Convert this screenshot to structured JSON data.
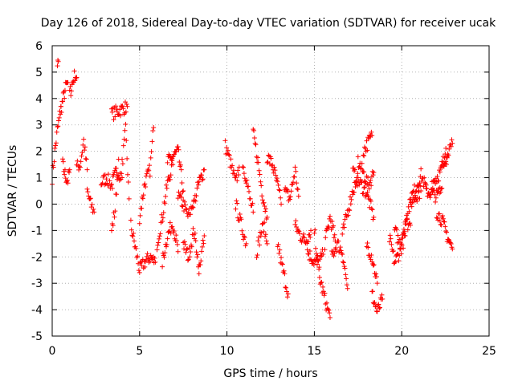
{
  "chart_data": {
    "type": "scatter",
    "title": "Day 126 of 2018, Sidereal Day-to-day VTEC variation (SDTVAR) for receiver ucak",
    "xlabel": "GPS time / hours",
    "ylabel": "SDTVAR / TECUs",
    "xlim": [
      0,
      25
    ],
    "ylim": [
      -5,
      6
    ],
    "xticks": [
      0,
      5,
      10,
      15,
      20,
      25
    ],
    "yticks": [
      -5,
      -4,
      -3,
      -2,
      -1,
      0,
      1,
      2,
      3,
      4,
      5,
      6
    ],
    "grid": true,
    "marker": "+",
    "color": "#ff0000",
    "series": [
      {
        "name": "SDTVAR",
        "segments": [
          {
            "x": [
              0.0,
              0.15,
              0.3,
              0.4,
              0.5
            ],
            "y": [
              1.0,
              2.0,
              2.8,
              3.2,
              3.7
            ]
          },
          {
            "x": [
              0.3,
              0.35
            ],
            "y": [
              5.3,
              5.4
            ]
          },
          {
            "x": [
              0.5,
              0.6,
              0.7,
              0.8,
              0.9
            ],
            "y": [
              3.6,
              3.9,
              4.2,
              4.5,
              4.6
            ]
          },
          {
            "x": [
              0.6,
              0.7,
              0.8,
              0.9,
              1.0
            ],
            "y": [
              1.5,
              1.2,
              1.0,
              0.9,
              1.3
            ]
          },
          {
            "x": [
              1.0,
              1.1,
              1.2,
              1.3,
              1.4
            ],
            "y": [
              4.2,
              4.4,
              4.7,
              4.9,
              4.8
            ]
          },
          {
            "x": [
              1.4,
              1.6,
              1.8,
              2.0
            ],
            "y": [
              1.4,
              1.5,
              2.4,
              1.3
            ]
          },
          {
            "x": [
              2.0,
              2.2,
              2.4
            ],
            "y": [
              0.5,
              0.0,
              -0.3
            ]
          },
          {
            "x": [
              2.8,
              3.1,
              3.4,
              3.7,
              4.0
            ],
            "y": [
              0.8,
              1.0,
              0.7,
              1.3,
              1.0
            ]
          },
          {
            "x": [
              3.4,
              3.6,
              3.8
            ],
            "y": [
              -1.0,
              -0.2,
              1.7
            ]
          },
          {
            "x": [
              3.4,
              4.3
            ],
            "y": [
              3.4,
              3.7
            ]
          },
          {
            "x": [
              4.0,
              4.2,
              4.4
            ],
            "y": [
              1.5,
              2.8,
              0.2
            ]
          },
          {
            "x": [
              4.5,
              4.8,
              5.0,
              5.3,
              5.6,
              5.9
            ],
            "y": [
              -0.8,
              -1.8,
              -2.5,
              -2.2,
              -2.0,
              -2.2
            ]
          },
          {
            "x": [
              5.0,
              5.3,
              5.6,
              5.8
            ],
            "y": [
              -0.5,
              0.8,
              1.3,
              2.9
            ]
          },
          {
            "x": [
              6.0,
              6.3,
              6.6,
              6.9
            ],
            "y": [
              -1.5,
              -0.5,
              0.8,
              1.5
            ]
          },
          {
            "x": [
              6.3,
              6.6,
              6.9,
              7.2
            ],
            "y": [
              -2.2,
              -1.2,
              -0.7,
              -1.8
            ]
          },
          {
            "x": [
              6.6,
              6.9,
              7.2,
              7.5
            ],
            "y": [
              1.6,
              1.8,
              2.0,
              0.5
            ]
          },
          {
            "x": [
              7.2,
              7.5,
              7.8,
              8.1
            ],
            "y": [
              0.3,
              0.0,
              -0.5,
              0.1
            ]
          },
          {
            "x": [
              7.5,
              7.8,
              8.1,
              8.4
            ],
            "y": [
              -1.5,
              -2.0,
              -1.0,
              -2.3
            ]
          },
          {
            "x": [
              8.1,
              8.4,
              8.7
            ],
            "y": [
              0.0,
              0.8,
              1.3
            ]
          },
          {
            "x": [
              8.4,
              8.7
            ],
            "y": [
              -2.5,
              -1.2
            ]
          },
          {
            "x": [
              9.9,
              10.1,
              10.3,
              10.5,
              10.7
            ],
            "y": [
              2.2,
              1.8,
              1.3,
              0.8,
              1.4
            ]
          },
          {
            "x": [
              10.5,
              10.7,
              10.9,
              11.1
            ],
            "y": [
              0.0,
              -0.5,
              -1.0,
              -1.5
            ]
          },
          {
            "x": [
              10.9,
              11.1,
              11.3,
              11.5
            ],
            "y": [
              1.5,
              1.0,
              0.2,
              -0.3
            ]
          },
          {
            "x": [
              11.5,
              11.8,
              12.0,
              12.3
            ],
            "y": [
              2.7,
              1.5,
              0.5,
              -0.5
            ]
          },
          {
            "x": [
              11.7,
              11.9,
              12.1,
              12.3
            ],
            "y": [
              -1.8,
              -1.2,
              -0.8,
              -1.5
            ]
          },
          {
            "x": [
              12.3,
              12.6,
              12.9,
              13.1
            ],
            "y": [
              1.8,
              1.5,
              0.7,
              0.0
            ]
          },
          {
            "x": [
              12.9,
              13.1,
              13.3,
              13.5
            ],
            "y": [
              -1.5,
              -2.2,
              -2.8,
              -3.4
            ]
          },
          {
            "x": [
              13.3,
              13.6,
              13.9,
              14.1
            ],
            "y": [
              0.5,
              0.2,
              1.3,
              0.3
            ]
          },
          {
            "x": [
              13.9,
              14.2,
              14.5,
              14.8
            ],
            "y": [
              -0.8,
              -1.2,
              -1.4,
              -1.0
            ]
          },
          {
            "x": [
              14.6,
              14.9,
              15.2,
              15.5
            ],
            "y": [
              -1.8,
              -2.1,
              -2.3,
              -1.9
            ]
          },
          {
            "x": [
              15.0,
              15.3,
              15.6,
              15.9
            ],
            "y": [
              -1.0,
              -2.8,
              -3.6,
              -4.3
            ]
          },
          {
            "x": [
              15.6,
              15.9,
              16.2
            ],
            "y": [
              -1.5,
              -0.5,
              -1.4
            ]
          },
          {
            "x": [
              16.0,
              16.3,
              16.6,
              16.9
            ],
            "y": [
              -2.0,
              -1.5,
              -1.8,
              -3.2
            ]
          },
          {
            "x": [
              16.6,
              16.9,
              17.2,
              17.5
            ],
            "y": [
              -1.2,
              -0.3,
              0.5,
              1.0
            ]
          },
          {
            "x": [
              17.2,
              17.6,
              18.0,
              18.4
            ],
            "y": [
              1.2,
              0.8,
              0.4,
              -0.5
            ]
          },
          {
            "x": [
              17.5,
              17.8,
              18.1,
              18.4
            ],
            "y": [
              1.6,
              1.2,
              0.7,
              1.2
            ]
          },
          {
            "x": [
              17.8,
              18.3
            ],
            "y": [
              2.0,
              2.6
            ]
          },
          {
            "x": [
              18.0,
              18.3,
              18.6
            ],
            "y": [
              -1.5,
              -2.0,
              -3.0
            ]
          },
          {
            "x": [
              18.3,
              18.6,
              18.9
            ],
            "y": [
              -3.4,
              -4.1,
              -3.6
            ]
          },
          {
            "x": [
              19.3,
              19.6,
              19.9,
              20.2
            ],
            "y": [
              -1.3,
              -2.2,
              -1.8,
              -1.2
            ]
          },
          {
            "x": [
              19.6,
              19.9,
              20.2,
              20.5
            ],
            "y": [
              -1.0,
              -1.5,
              -0.7,
              -0.8
            ]
          },
          {
            "x": [
              20.2,
              20.5,
              20.8,
              21.1
            ],
            "y": [
              -0.5,
              0.0,
              0.3,
              0.5
            ]
          },
          {
            "x": [
              20.5,
              20.8,
              21.1,
              21.4
            ],
            "y": [
              0.2,
              0.6,
              1.1,
              0.6
            ]
          },
          {
            "x": [
              21.4,
              21.7,
              22.0,
              22.3
            ],
            "y": [
              0.5,
              0.4,
              0.3,
              0.6
            ]
          },
          {
            "x": [
              21.7,
              22.0,
              22.3,
              22.6
            ],
            "y": [
              0.8,
              1.0,
              1.3,
              1.8
            ]
          },
          {
            "x": [
              22.0,
              22.3,
              22.6,
              22.9
            ],
            "y": [
              -0.3,
              -0.6,
              -1.2,
              -1.7
            ]
          },
          {
            "x": [
              22.3,
              22.6,
              22.9
            ],
            "y": [
              1.5,
              2.0,
              2.3
            ]
          }
        ]
      }
    ]
  }
}
